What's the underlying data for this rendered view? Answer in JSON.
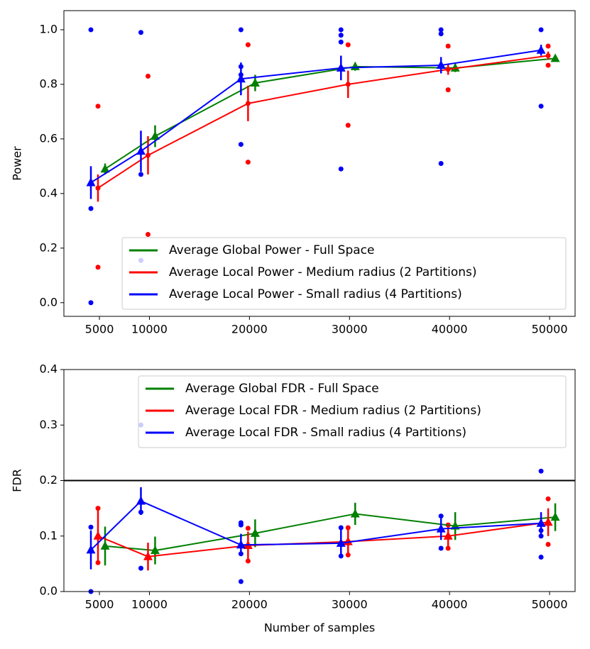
{
  "chart_data": [
    {
      "type": "line",
      "ylabel": "Power",
      "x": [
        5000,
        10000,
        20000,
        30000,
        40000,
        50000
      ],
      "xlim": [
        1450,
        52550
      ],
      "xticks": [
        5000,
        10000,
        20000,
        30000,
        40000,
        50000
      ],
      "ylim": [
        -0.05,
        1.07
      ],
      "yticks": [
        {
          "value": 0,
          "label": "0.0"
        },
        {
          "value": 0.2,
          "label": "0.2"
        },
        {
          "value": 0.4,
          "label": "0.4"
        },
        {
          "value": 0.6,
          "label": "0.6"
        },
        {
          "value": 0.8,
          "label": "0.8"
        },
        {
          "value": 1,
          "label": "1.0"
        }
      ],
      "legend": "lower right",
      "series": [
        {
          "name": "Average Global Power - Full Space",
          "color": "#008000",
          "marker": "triangle",
          "values": [
            0.49,
            0.61,
            0.805,
            0.865,
            0.86,
            0.895
          ],
          "errors": [
            0.02,
            0.04,
            0.03,
            0.015,
            0.015,
            0.01
          ],
          "runs": [
            [],
            [],
            [],
            [],
            [],
            []
          ]
        },
        {
          "name": "Average Local Power - Medium radius (2 Partitions)",
          "color": "#ff0000",
          "marker": "circle",
          "values": [
            0.42,
            0.54,
            0.73,
            0.8,
            0.855,
            0.905
          ],
          "errors": [
            0.05,
            0.07,
            0.065,
            0.05,
            0.02,
            0.015
          ],
          "runs": [
            [
              0.72,
              0.13
            ],
            [
              0.83,
              0.25
            ],
            [
              0.945,
              0.515
            ],
            [
              0.945,
              0.65
            ],
            [
              0.94,
              0.78
            ],
            [
              0.94,
              0.87
            ]
          ]
        },
        {
          "name": "Average Local Power - Small radius (4 Partitions)",
          "color": "#0000ff",
          "marker": "triangle",
          "values": [
            0.44,
            0.555,
            0.82,
            0.86,
            0.87,
            0.925
          ],
          "errors": [
            0.06,
            0.075,
            0.06,
            0.045,
            0.03,
            0.02
          ],
          "runs": [
            [
              1.0,
              0.345,
              0.0
            ],
            [
              0.99,
              0.47,
              0.155
            ],
            [
              1.0,
              0.865,
              0.835,
              0.58
            ],
            [
              1.0,
              0.98,
              0.955,
              0.49
            ],
            [
              1.0,
              0.985,
              0.51
            ],
            [
              1.0,
              0.72
            ]
          ]
        }
      ]
    },
    {
      "type": "line",
      "ylabel": "FDR",
      "xlabel": "Number of samples",
      "x": [
        5000,
        10000,
        20000,
        30000,
        40000,
        50000
      ],
      "xlim": [
        1450,
        52550
      ],
      "xticks": [
        5000,
        10000,
        20000,
        30000,
        40000,
        50000
      ],
      "ylim": [
        0,
        0.4
      ],
      "yticks": [
        {
          "value": 0,
          "label": "0.0"
        },
        0.1,
        0.2,
        0.3,
        0.4
      ],
      "hline": 0.2,
      "hline_color": "#000000",
      "legend": "upper right",
      "series": [
        {
          "name": "Average Global FDR - Full Space",
          "color": "#008000",
          "marker": "triangle",
          "values": [
            0.082,
            0.074,
            0.105,
            0.14,
            0.118,
            0.134
          ],
          "errors": [
            0.035,
            0.025,
            0.025,
            0.02,
            0.025,
            0.025
          ],
          "runs": [
            [],
            [],
            [],
            [],
            [],
            []
          ]
        },
        {
          "name": "Average Local FDR - Medium radius (2 Partitions)",
          "color": "#ff0000",
          "marker": "triangle",
          "values": [
            0.1,
            0.063,
            0.083,
            0.09,
            0.1,
            0.125
          ],
          "errors": [
            0.05,
            0.025,
            0.025,
            0.025,
            0.02,
            0.025
          ],
          "runs": [
            [
              0.15,
              0.052
            ],
            [],
            [
              0.114,
              0.055
            ],
            [
              0.115,
              0.066
            ],
            [
              0.12,
              0.078
            ],
            [
              0.167,
              0.085
            ]
          ]
        },
        {
          "name": "Average Local FDR - Small radius (4 Partitions)",
          "color": "#0000ff",
          "marker": "triangle",
          "values": [
            0.075,
            0.163,
            0.084,
            0.087,
            0.113,
            0.123
          ],
          "errors": [
            0.035,
            0.025,
            0.02,
            0.025,
            0.02,
            0.02
          ],
          "runs": [
            [
              0.116,
              0.0
            ],
            [
              0.3,
              0.143,
              0.042
            ],
            [
              0.124,
              0.12,
              0.068,
              0.018
            ],
            [
              0.115,
              0.064
            ],
            [
              0.136,
              0.078
            ],
            [
              0.217,
              0.11,
              0.1,
              0.062
            ]
          ]
        }
      ]
    }
  ]
}
